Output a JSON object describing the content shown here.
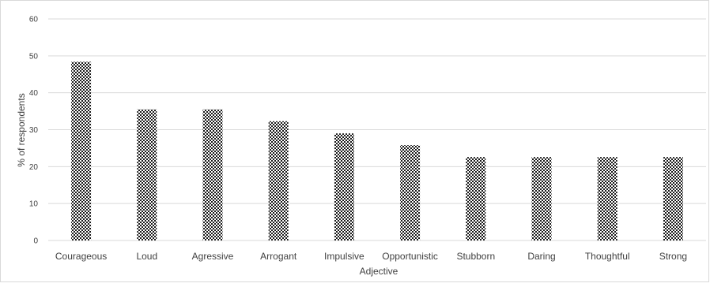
{
  "chart_data": {
    "type": "bar",
    "categories": [
      "Courageous",
      "Loud",
      "Agressive",
      "Arrogant",
      "Impulsive",
      "Opportunistic",
      "Stubborn",
      "Daring",
      "Thoughtful",
      "Strong"
    ],
    "series": [
      {
        "values": [
          48.4,
          35.5,
          35.5,
          32.3,
          29.0,
          25.8,
          22.6,
          22.6,
          22.6,
          22.6
        ]
      }
    ],
    "title": "",
    "xlabel": "Adjective",
    "ylabel": "% of respondents",
    "ylim": [
      0,
      60
    ],
    "yticks": [
      0,
      10,
      20,
      30,
      40,
      50,
      60
    ],
    "grid": true,
    "legend": "none",
    "bar_fill": "checkered-pattern",
    "colors": {
      "bar_dark": "#1a1a1a",
      "bar_light": "#ffffff",
      "grid": "#d9d9d9",
      "text": "#404040"
    }
  }
}
